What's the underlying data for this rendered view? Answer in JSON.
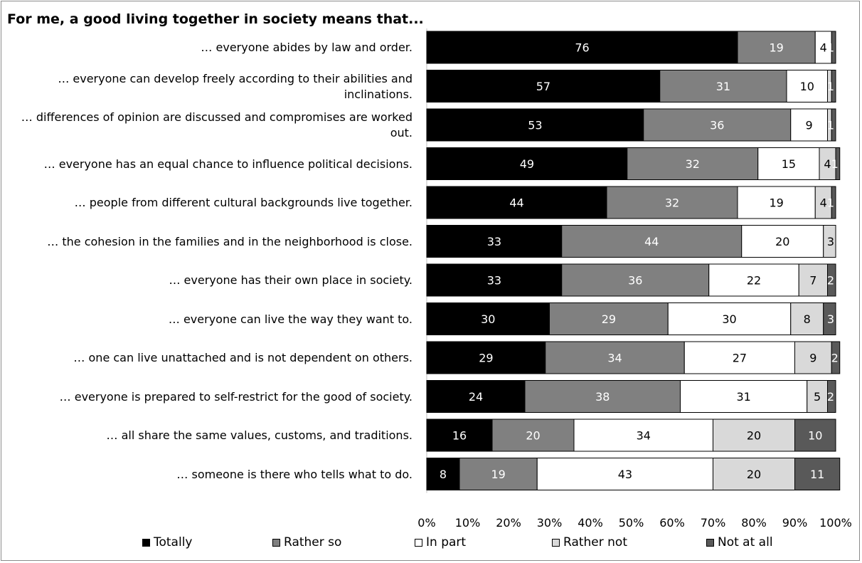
{
  "chart_data": {
    "type": "bar",
    "orientation": "horizontal",
    "stacked": "percent",
    "title": "For me, a good living together in society means that...",
    "xlabel": "",
    "ylabel": "",
    "xlim": [
      0,
      100
    ],
    "x_ticks": [
      "0%",
      "10%",
      "20%",
      "30%",
      "40%",
      "50%",
      "60%",
      "70%",
      "80%",
      "90%",
      "100%"
    ],
    "grid": false,
    "legend_position": "bottom",
    "categories": [
      "… everyone abides by law and order.",
      "… everyone can develop freely according to their abilities and inclinations.",
      "… differences of opinion are discussed and compromises are worked out.",
      "… everyone has an equal chance to influence political decisions.",
      "… people from different cultural backgrounds live together.",
      "… the cohesion in the families and in the neighborhood is close.",
      "… everyone has their own place in society.",
      "… everyone can live the way they want to.",
      "… one can live unattached and is not dependent on others.",
      "… everyone is prepared to self-restrict for the good of society.",
      "… all share the same values, customs, and traditions.",
      "… someone is there who tells what to do."
    ],
    "series": [
      {
        "name": "Totally",
        "color": "#000000",
        "label_color": "#ffffff",
        "values": [
          76,
          57,
          53,
          49,
          44,
          33,
          33,
          30,
          29,
          24,
          16,
          8
        ]
      },
      {
        "name": "Rather so",
        "color": "#808080",
        "label_color": "#ffffff",
        "values": [
          19,
          31,
          36,
          32,
          32,
          44,
          36,
          29,
          34,
          38,
          20,
          19
        ]
      },
      {
        "name": "In part",
        "color": "#ffffff",
        "label_color": "#000000",
        "values": [
          4,
          10,
          9,
          15,
          19,
          20,
          22,
          30,
          27,
          31,
          34,
          43
        ]
      },
      {
        "name": "Rather not",
        "color": "#d9d9d9",
        "label_color": "#000000",
        "values": [
          0,
          1,
          1,
          4,
          4,
          3,
          7,
          8,
          9,
          5,
          20,
          20
        ]
      },
      {
        "name": "Not at all",
        "color": "#595959",
        "label_color": "#ffffff",
        "values": [
          1,
          1,
          1,
          1,
          1,
          0,
          2,
          3,
          2,
          2,
          10,
          11
        ]
      }
    ],
    "data_labels": [
      [
        "76",
        "19",
        "4",
        "",
        "1"
      ],
      [
        "57",
        "31",
        "10",
        "",
        "1"
      ],
      [
        "53",
        "36",
        "9",
        "",
        "1"
      ],
      [
        "49",
        "32",
        "15",
        "4",
        "1"
      ],
      [
        "44",
        "32",
        "19",
        "4",
        "1"
      ],
      [
        "33",
        "44",
        "20",
        "3",
        ""
      ],
      [
        "33",
        "36",
        "22",
        "7",
        "2"
      ],
      [
        "30",
        "29",
        "30",
        "8",
        "3"
      ],
      [
        "29",
        "34",
        "27",
        "9",
        "2"
      ],
      [
        "24",
        "38",
        "31",
        "5",
        "2"
      ],
      [
        "16",
        "20",
        "34",
        "20",
        "10"
      ],
      [
        "8",
        "19",
        "43",
        "20",
        "11"
      ]
    ]
  }
}
